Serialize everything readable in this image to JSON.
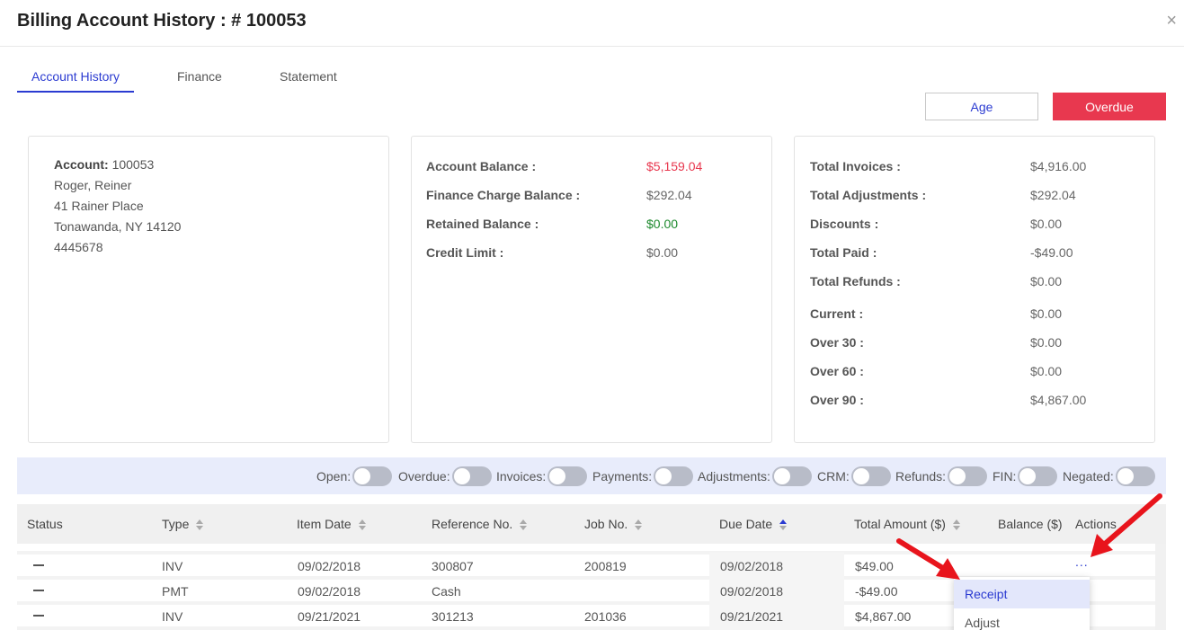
{
  "header": {
    "title": "Billing Account History : # 100053",
    "close": "×"
  },
  "tabs": [
    {
      "label": "Account History",
      "active": true
    },
    {
      "label": "Finance",
      "active": false
    },
    {
      "label": "Statement",
      "active": false
    }
  ],
  "buttons": {
    "age": "Age",
    "overdue": "Overdue"
  },
  "account": {
    "label": "Account:",
    "number": "100053",
    "name": "Roger, Reiner",
    "street": "41 Rainer Place",
    "city": "Tonawanda, NY 14120",
    "phone": "4445678"
  },
  "balances": [
    {
      "label": "Account Balance :",
      "value": "$5,159.04",
      "color": "#e8384f"
    },
    {
      "label": "Finance Charge Balance :",
      "value": "$292.04",
      "color": "#666666"
    },
    {
      "label": "Retained Balance :",
      "value": "$0.00",
      "color": "#1e8a2e"
    },
    {
      "label": "Credit Limit :",
      "value": "$0.00",
      "color": "#666666"
    }
  ],
  "totals": [
    {
      "label": "Total Invoices :",
      "value": "$4,916.00"
    },
    {
      "label": "Total Adjustments :",
      "value": "$292.04"
    },
    {
      "label": "Discounts :",
      "value": "$0.00"
    },
    {
      "label": "Total Paid :",
      "value": "-$49.00"
    },
    {
      "label": "Total Refunds :",
      "value": "$0.00"
    },
    {
      "label": "Current :",
      "value": "$0.00"
    },
    {
      "label": "Over 30 :",
      "value": "$0.00"
    },
    {
      "label": "Over 60 :",
      "value": "$0.00"
    },
    {
      "label": "Over 90 :",
      "value": "$4,867.00"
    }
  ],
  "filters": [
    {
      "label": "Open:",
      "on": false
    },
    {
      "label": "Overdue:",
      "on": false
    },
    {
      "label": "Invoices:",
      "on": false
    },
    {
      "label": "Payments:",
      "on": false
    },
    {
      "label": "Adjustments:",
      "on": false
    },
    {
      "label": "CRM:",
      "on": false
    },
    {
      "label": "Refunds:",
      "on": false
    },
    {
      "label": "FIN:",
      "on": false
    },
    {
      "label": "Negated:",
      "on": false
    }
  ],
  "table": {
    "columns": [
      "Status",
      "Type",
      "Item Date",
      "Reference No.",
      "Job No.",
      "Due Date",
      "Total Amount ($)",
      "Balance ($)",
      "Actions"
    ],
    "sorted_column": "Due Date",
    "sort_direction": "ascending",
    "rows": [
      {
        "status": "—",
        "type": "INV",
        "item_date": "09/02/2018",
        "reference": "300807",
        "job": "200819",
        "due_date": "09/02/2018",
        "total": "$49.00",
        "balance": ""
      },
      {
        "status": "—",
        "type": "PMT",
        "item_date": "09/02/2018",
        "reference": "Cash",
        "job": "",
        "due_date": "09/02/2018",
        "total": "-$49.00",
        "balance": ""
      },
      {
        "status": "—",
        "type": "INV",
        "item_date": "09/21/2021",
        "reference": "301213",
        "job": "201036",
        "due_date": "09/21/2021",
        "total": "$4,867.00",
        "balance": ""
      }
    ],
    "actions_label": "...",
    "actions_menu": [
      {
        "label": "Receipt",
        "highlighted": true
      },
      {
        "label": "Adjust",
        "highlighted": false
      }
    ]
  },
  "colors": {
    "accent": "#2b3bd1",
    "danger": "#e8384f",
    "success": "#1e8a2e",
    "annotation_arrow": "#e8141c"
  },
  "annotations": [
    "arrow-to-receipt",
    "arrow-to-actions"
  ]
}
